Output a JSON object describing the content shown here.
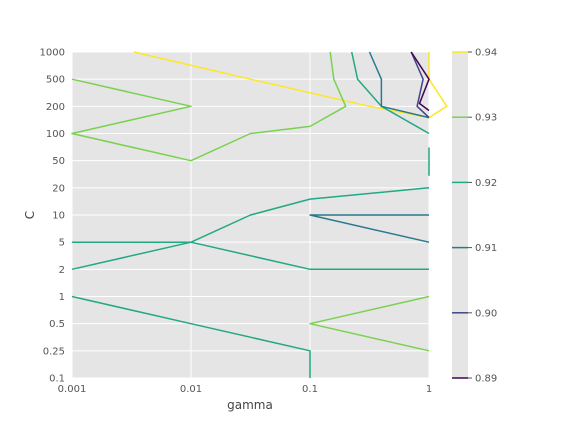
{
  "chart_data": {
    "type": "contour",
    "xlabel": "gamma",
    "ylabel": "C",
    "x_scale": "categorical",
    "y_scale": "categorical",
    "xticks": [
      "0.001",
      "0.01",
      "0.1",
      "1"
    ],
    "yticks": [
      "0.1",
      "0.25",
      "0.5",
      "1",
      "2",
      "5",
      "10",
      "20",
      "50",
      "100",
      "200",
      "500",
      "1000"
    ],
    "x": [
      0.001,
      0.01,
      0.1,
      1
    ],
    "y": [
      0.1,
      0.25,
      0.5,
      1,
      2,
      5,
      10,
      20,
      50,
      100,
      200,
      500,
      1000
    ],
    "grid": true,
    "background": "#e5e5e5",
    "colorbar": {
      "ticks": [
        "0.89",
        "0.90",
        "0.91",
        "0.92",
        "0.93",
        "0.94"
      ],
      "levels": [
        {
          "level": 0.89,
          "color": "#440154"
        },
        {
          "level": 0.9,
          "color": "#414487"
        },
        {
          "level": 0.91,
          "color": "#2a788e"
        },
        {
          "level": 0.92,
          "color": "#22a884"
        },
        {
          "level": 0.93,
          "color": "#7ad151"
        },
        {
          "level": 0.94,
          "color": "#fde725"
        }
      ]
    },
    "contours": [
      {
        "level": 0.94,
        "color": "#fde725",
        "points": [
          [
            0.52,
            1000
          ],
          [
            1.5,
            500
          ],
          [
            2.5,
            200
          ],
          [
            3.0,
            150
          ],
          [
            3.15,
            200
          ],
          [
            3.0,
            500
          ],
          [
            3.0,
            1000
          ]
        ]
      },
      {
        "level": 0.93,
        "color": "#7ad151",
        "points": [
          [
            0,
            500
          ],
          [
            1,
            200
          ],
          [
            0,
            100
          ],
          [
            1,
            50
          ],
          [
            1.5,
            100
          ],
          [
            2,
            120
          ],
          [
            2.3,
            200
          ],
          [
            2.2,
            500
          ],
          [
            2.17,
            1000
          ]
        ]
      },
      {
        "level": 0.93,
        "color": "#7ad151",
        "points": [
          [
            3,
            1
          ],
          [
            2,
            0.5
          ],
          [
            3,
            0.25
          ]
        ]
      },
      {
        "level": 0.92,
        "color": "#22a884",
        "points": [
          [
            0,
            5
          ],
          [
            1,
            5
          ],
          [
            1.5,
            10
          ],
          [
            2,
            15
          ],
          [
            3,
            20
          ]
        ]
      },
      {
        "level": 0.92,
        "color": "#22a884",
        "points": [
          [
            0,
            2
          ],
          [
            1,
            5
          ],
          [
            2,
            2
          ],
          [
            3,
            2
          ]
        ]
      },
      {
        "level": 0.92,
        "color": "#22a884",
        "points": [
          [
            0,
            1
          ],
          [
            1,
            0.5
          ],
          [
            2,
            0.25
          ],
          [
            2,
            0.1
          ]
        ]
      },
      {
        "level": 0.92,
        "color": "#22a884",
        "points": [
          [
            3,
            100
          ],
          [
            2.6,
            200
          ],
          [
            2.4,
            500
          ],
          [
            2.35,
            1000
          ]
        ]
      },
      {
        "level": 0.92,
        "color": "#22a884",
        "points": [
          [
            3,
            30
          ],
          [
            3,
            70
          ]
        ]
      },
      {
        "level": 0.91,
        "color": "#2a788e",
        "points": [
          [
            3,
            10
          ],
          [
            2,
            10
          ],
          [
            3,
            5
          ]
        ]
      },
      {
        "level": 0.91,
        "color": "#2a788e",
        "points": [
          [
            3,
            150
          ],
          [
            2.6,
            200
          ],
          [
            2.6,
            500
          ],
          [
            2.5,
            1000
          ]
        ]
      },
      {
        "level": 0.9,
        "color": "#414487",
        "points": [
          [
            2.85,
            1000
          ],
          [
            2.95,
            500
          ],
          [
            2.9,
            200
          ],
          [
            3,
            150
          ]
        ]
      },
      {
        "level": 0.89,
        "color": "#440154",
        "points": [
          [
            2.85,
            1000
          ],
          [
            3,
            500
          ],
          [
            2.92,
            220
          ],
          [
            3,
            180
          ]
        ]
      }
    ]
  }
}
